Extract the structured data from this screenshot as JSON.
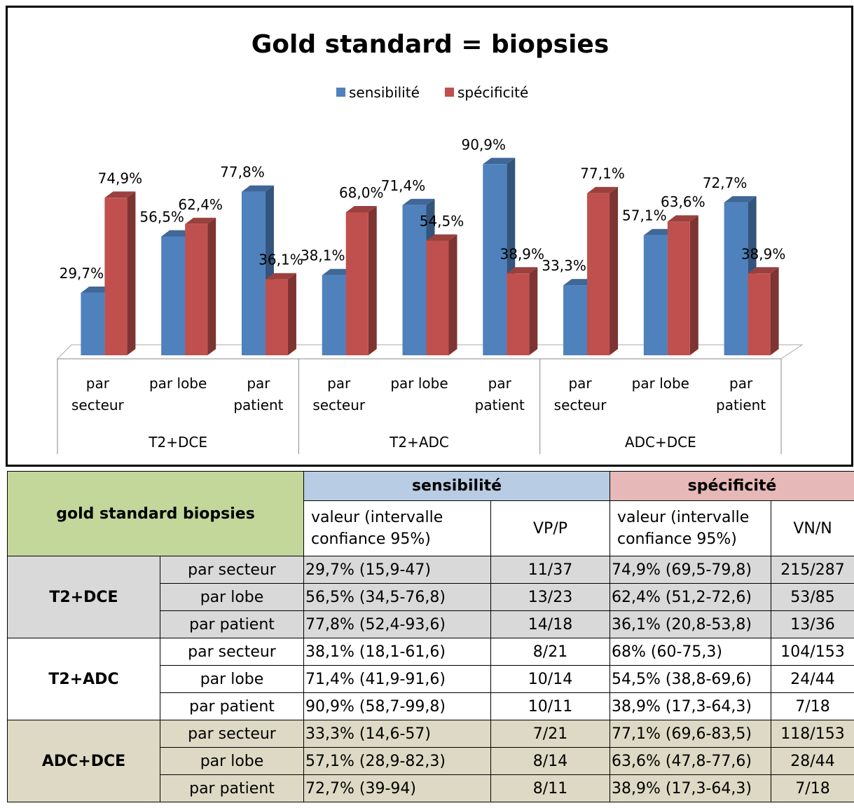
{
  "chart_data": {
    "type": "bar3d",
    "title": "Gold standard = biopsies",
    "categories": [
      "par secteur",
      "par lobe",
      "par patient",
      "par secteur",
      "par lobe",
      "par patient",
      "par secteur",
      "par lobe",
      "par patient"
    ],
    "groups": [
      "T2+DCE",
      "T2+ADC",
      "ADC+DCE"
    ],
    "series": [
      {
        "name": "sensibilité",
        "color": "#4f81bd",
        "values": [
          29.7,
          56.5,
          77.8,
          38.1,
          71.4,
          90.9,
          33.3,
          57.1,
          72.7
        ],
        "value_labels": [
          "29,7%",
          "56,5%",
          "77,8%",
          "38,1%",
          "71,4%",
          "90,9%",
          "33,3%",
          "57,1%",
          "72,7%"
        ]
      },
      {
        "name": "spécificité",
        "color": "#c0504d",
        "values": [
          74.9,
          62.4,
          36.1,
          68.0,
          54.5,
          38.9,
          77.1,
          63.6,
          38.9
        ],
        "value_labels": [
          "74,9%",
          "62,4%",
          "36,1%",
          "68,0%",
          "54,5%",
          "38,9%",
          "77,1%",
          "63,6%",
          "38,9%"
        ]
      }
    ],
    "legend": "top"
  },
  "table": {
    "corner": "gold standard biopsies",
    "groups": [
      "sensibilité",
      "spécificité"
    ],
    "subheaders": [
      "valeur (intervalle confiance 95%)",
      "VP/P",
      "valeur (intervalle confiance 95%)",
      "VN/N"
    ],
    "sections": [
      {
        "name": "T2+DCE",
        "rows": [
          [
            "par secteur",
            "29,7% (15,9-47)",
            "11/37",
            "74,9% (69,5-79,8)",
            "215/287"
          ],
          [
            "par lobe",
            "56,5% (34,5-76,8)",
            "13/23",
            "62,4% (51,2-72,6)",
            "53/85"
          ],
          [
            "par patient",
            "77,8% (52,4-93,6)",
            "14/18",
            "36,1% (20,8-53,8)",
            "13/36"
          ]
        ]
      },
      {
        "name": "T2+ADC",
        "rows": [
          [
            "par secteur",
            "38,1% (18,1-61,6)",
            "8/21",
            "68% (60-75,3)",
            "104/153"
          ],
          [
            "par lobe",
            "71,4% (41,9-91,6)",
            "10/14",
            "54,5% (38,8-69,6)",
            "24/44"
          ],
          [
            "par patient",
            "90,9% (58,7-99,8)",
            "10/11",
            "38,9% (17,3-64,3)",
            "7/18"
          ]
        ]
      },
      {
        "name": "ADC+DCE",
        "rows": [
          [
            "par secteur",
            "33,3% (14,6-57)",
            "7/21",
            "77,1% (69,6-83,5)",
            "118/153"
          ],
          [
            "par lobe",
            "57,1% (28,9-82,3)",
            "8/14",
            "63,6% (47,8-77,6)",
            "28/44"
          ],
          [
            "par patient",
            "72,7% (39-94)",
            "8/11",
            "38,9% (17,3-64,3)",
            "7/18"
          ]
        ]
      }
    ]
  }
}
